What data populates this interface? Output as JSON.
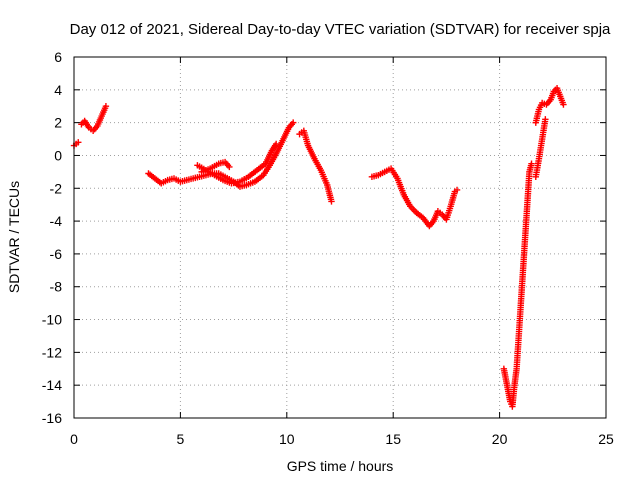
{
  "chart_data": {
    "type": "scatter",
    "title": "Day 012 of 2021, Sidereal Day-to-day VTEC variation (SDTVAR) for receiver spja",
    "xlabel": "GPS time / hours",
    "ylabel": "SDTVAR / TECUs",
    "xlim": [
      0,
      25
    ],
    "ylim": [
      -16,
      6
    ],
    "xticks": [
      0,
      5,
      10,
      15,
      20,
      25
    ],
    "yticks": [
      -16,
      -14,
      -12,
      -10,
      -8,
      -6,
      -4,
      -2,
      0,
      2,
      4,
      6
    ],
    "grid": true,
    "marker": "plus",
    "color": "#ff0000",
    "segments": [
      [
        [
          0.0,
          0.6
        ],
        [
          0.2,
          0.8
        ]
      ],
      [
        [
          0.35,
          1.9
        ],
        [
          0.5,
          2.1
        ],
        [
          0.7,
          1.7
        ],
        [
          0.9,
          1.5
        ],
        [
          1.1,
          1.8
        ],
        [
          1.3,
          2.4
        ],
        [
          1.5,
          3.0
        ]
      ],
      [
        [
          3.5,
          -1.1
        ],
        [
          3.8,
          -1.4
        ],
        [
          4.1,
          -1.7
        ],
        [
          4.4,
          -1.5
        ],
        [
          4.7,
          -1.4
        ],
        [
          5.0,
          -1.6
        ],
        [
          5.3,
          -1.5
        ],
        [
          5.6,
          -1.4
        ],
        [
          5.9,
          -1.3
        ],
        [
          6.2,
          -1.2
        ],
        [
          6.5,
          -1.1
        ],
        [
          6.8,
          -1.1
        ],
        [
          7.1,
          -1.3
        ],
        [
          7.5,
          -1.6
        ],
        [
          7.8,
          -1.9
        ],
        [
          8.1,
          -1.8
        ],
        [
          8.5,
          -1.6
        ],
        [
          8.9,
          -1.2
        ],
        [
          9.2,
          -0.6
        ],
        [
          9.5,
          0.1
        ],
        [
          9.8,
          0.9
        ],
        [
          10.1,
          1.7
        ],
        [
          10.3,
          2.0
        ]
      ],
      [
        [
          5.8,
          -0.6
        ],
        [
          6.2,
          -0.9
        ],
        [
          6.6,
          -1.2
        ],
        [
          7.0,
          -1.5
        ],
        [
          7.4,
          -1.7
        ],
        [
          7.8,
          -1.6
        ],
        [
          8.2,
          -1.3
        ],
        [
          8.6,
          -0.9
        ],
        [
          9.0,
          -0.5
        ],
        [
          9.3,
          0.3
        ],
        [
          9.5,
          0.7
        ]
      ],
      [
        [
          6.0,
          -1.0
        ],
        [
          6.4,
          -0.8
        ],
        [
          6.8,
          -0.5
        ],
        [
          7.1,
          -0.4
        ],
        [
          7.3,
          -0.7
        ]
      ],
      [
        [
          10.6,
          1.3
        ],
        [
          10.8,
          1.5
        ],
        [
          11.0,
          0.6
        ],
        [
          11.3,
          -0.2
        ],
        [
          11.6,
          -0.9
        ],
        [
          11.9,
          -1.8
        ],
        [
          12.1,
          -2.8
        ]
      ],
      [
        [
          14.0,
          -1.3
        ],
        [
          14.3,
          -1.2
        ],
        [
          14.6,
          -1.0
        ],
        [
          14.9,
          -0.8
        ],
        [
          15.2,
          -1.4
        ],
        [
          15.5,
          -2.4
        ],
        [
          15.8,
          -3.1
        ],
        [
          16.1,
          -3.5
        ],
        [
          16.4,
          -3.8
        ],
        [
          16.7,
          -4.3
        ],
        [
          16.9,
          -4.0
        ],
        [
          17.1,
          -3.4
        ],
        [
          17.3,
          -3.6
        ],
        [
          17.5,
          -3.9
        ],
        [
          17.7,
          -3.1
        ],
        [
          17.9,
          -2.2
        ],
        [
          18.0,
          -2.1
        ]
      ],
      [
        [
          20.2,
          -13.0
        ],
        [
          20.35,
          -14.0
        ],
        [
          20.5,
          -15.0
        ],
        [
          20.6,
          -15.3
        ],
        [
          20.7,
          -14.0
        ],
        [
          20.8,
          -13.0
        ],
        [
          20.9,
          -11.0
        ],
        [
          21.0,
          -9.0
        ],
        [
          21.1,
          -7.0
        ],
        [
          21.2,
          -5.0
        ],
        [
          21.3,
          -3.0
        ],
        [
          21.4,
          -1.0
        ],
        [
          21.5,
          -0.5
        ]
      ],
      [
        [
          21.7,
          -1.3
        ],
        [
          21.85,
          -0.2
        ],
        [
          22.0,
          1.0
        ],
        [
          22.15,
          2.2
        ]
      ],
      [
        [
          21.7,
          2.0
        ],
        [
          21.85,
          2.8
        ],
        [
          22.0,
          3.2
        ],
        [
          22.2,
          3.1
        ],
        [
          22.4,
          3.4
        ],
        [
          22.55,
          3.9
        ],
        [
          22.7,
          4.1
        ],
        [
          22.85,
          3.6
        ],
        [
          23.0,
          3.1
        ]
      ]
    ]
  }
}
